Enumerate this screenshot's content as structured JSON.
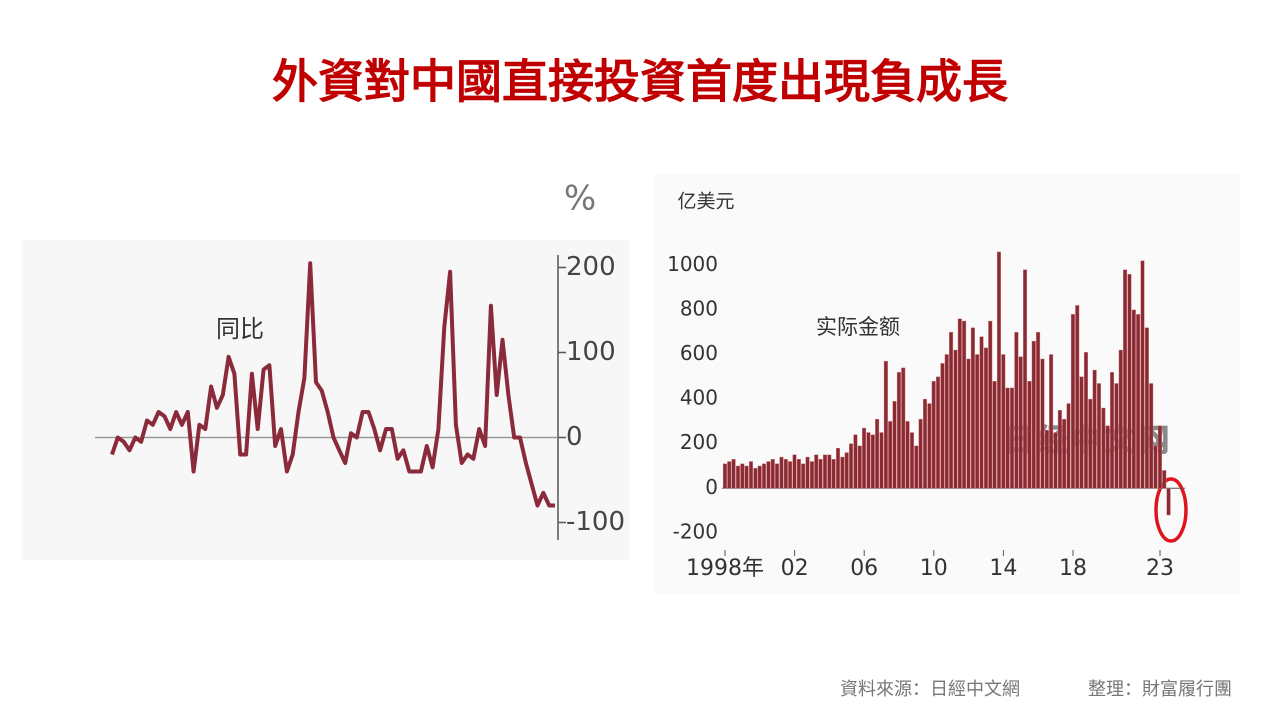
{
  "title": "外資對中國直接投資首度出現負成長",
  "source": "資料來源：日經中文網",
  "credit": "整理：財富履行團",
  "chart_data": [
    {
      "type": "line",
      "unit_label": "%",
      "annotation": "同比",
      "color": "#8b2a3a",
      "values": [
        -20,
        0,
        -5,
        -15,
        0,
        -5,
        20,
        15,
        30,
        25,
        10,
        30,
        15,
        30,
        -40,
        15,
        10,
        60,
        35,
        50,
        95,
        75,
        -20,
        -20,
        75,
        10,
        80,
        85,
        -10,
        10,
        -40,
        -20,
        30,
        70,
        205,
        65,
        55,
        30,
        0,
        -15,
        -30,
        5,
        0,
        30,
        30,
        10,
        -15,
        10,
        10,
        -25,
        -15,
        -40,
        -40,
        -40,
        -10,
        -35,
        10,
        130,
        195,
        15,
        -30,
        -20,
        -25,
        10,
        -10,
        155,
        50,
        115,
        50,
        0,
        0,
        -30,
        -55,
        -80,
        -65,
        -80,
        -80
      ],
      "ylim": [
        -110,
        230
      ],
      "yticks": [
        -100,
        0,
        100,
        200
      ]
    },
    {
      "type": "bar",
      "unit_label": "亿美元",
      "annotation": "实际金额",
      "watermark": "日经中文网",
      "color": "#8b2a33",
      "x": [
        1998,
        1998.25,
        1998.5,
        1998.75,
        1999,
        1999.25,
        1999.5,
        1999.75,
        2000,
        2000.25,
        2000.5,
        2000.75,
        2001,
        2001.25,
        2001.5,
        2001.75,
        2002,
        2002.25,
        2002.5,
        2002.75,
        2003,
        2003.25,
        2003.5,
        2003.75,
        2004,
        2004.25,
        2004.5,
        2004.75,
        2005,
        2005.25,
        2005.5,
        2005.75,
        2006,
        2006.25,
        2006.5,
        2006.75,
        2007,
        2007.25,
        2007.5,
        2007.75,
        2008,
        2008.25,
        2008.5,
        2008.75,
        2009,
        2009.25,
        2009.5,
        2009.75,
        2010,
        2010.25,
        2010.5,
        2010.75,
        2011,
        2011.25,
        2011.5,
        2011.75,
        2012,
        2012.25,
        2012.5,
        2012.75,
        2013,
        2013.25,
        2013.5,
        2013.75,
        2014,
        2014.25,
        2014.5,
        2014.75,
        2015,
        2015.25,
        2015.5,
        2015.75,
        2016,
        2016.25,
        2016.5,
        2016.75,
        2017,
        2017.25,
        2017.5,
        2017.75,
        2018,
        2018.25,
        2018.5,
        2018.75,
        2019,
        2019.25,
        2019.5,
        2019.75,
        2020,
        2020.25,
        2020.5,
        2020.75,
        2021,
        2021.25,
        2021.5,
        2021.75,
        2022,
        2022.25,
        2022.5,
        2022.75,
        2023,
        2023.25,
        2023.5
      ],
      "values": [
        110,
        120,
        130,
        100,
        110,
        100,
        120,
        90,
        100,
        110,
        120,
        130,
        110,
        140,
        130,
        120,
        150,
        130,
        110,
        140,
        120,
        150,
        130,
        150,
        150,
        130,
        180,
        140,
        160,
        200,
        240,
        190,
        270,
        250,
        240,
        310,
        250,
        570,
        300,
        390,
        520,
        540,
        300,
        250,
        190,
        310,
        400,
        380,
        480,
        500,
        560,
        600,
        700,
        620,
        760,
        750,
        580,
        720,
        600,
        680,
        630,
        750,
        480,
        1060,
        600,
        450,
        450,
        700,
        590,
        980,
        480,
        660,
        700,
        580,
        260,
        600,
        250,
        350,
        310,
        380,
        780,
        820,
        500,
        610,
        400,
        530,
        470,
        360,
        280,
        520,
        470,
        620,
        980,
        960,
        800,
        780,
        1020,
        720,
        470,
        190,
        280,
        80,
        -120
      ],
      "xlim": [
        1997.85,
        2024.1
      ],
      "xticks": [
        {
          "value": 1998,
          "label": "1998年"
        },
        {
          "value": 2002,
          "label": "02"
        },
        {
          "value": 2006,
          "label": "06"
        },
        {
          "value": 2010,
          "label": "10"
        },
        {
          "value": 2014,
          "label": "14"
        },
        {
          "value": 2018,
          "label": "18"
        },
        {
          "value": 2023,
          "label": "23"
        }
      ],
      "ylim": [
        -250,
        1100
      ],
      "yticks": [
        -200,
        0,
        200,
        400,
        600,
        800,
        1000
      ]
    }
  ]
}
